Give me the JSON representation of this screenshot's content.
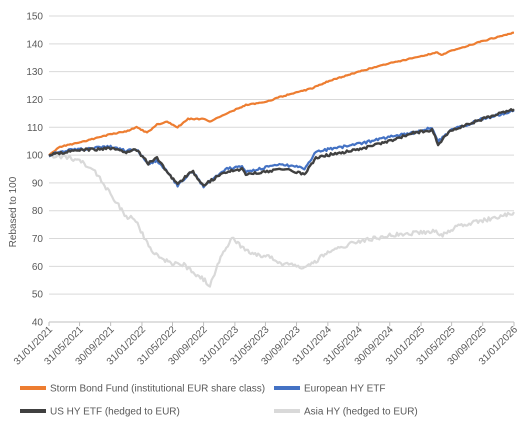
{
  "chart_data": {
    "type": "line",
    "title": "",
    "xlabel": "",
    "ylabel": "Rebased to 100",
    "ylim": [
      40,
      150
    ],
    "yticks": [
      40,
      50,
      60,
      70,
      80,
      90,
      100,
      110,
      120,
      130,
      140,
      150
    ],
    "x_range": [
      "2021-01-31",
      "2026-01-31"
    ],
    "xticks": [
      {
        "date": "2021-01-31",
        "label": "31/01/2021"
      },
      {
        "date": "2021-05-31",
        "label": "31/05/2021"
      },
      {
        "date": "2021-09-30",
        "label": "30/09/2021"
      },
      {
        "date": "2022-01-31",
        "label": "31/01/2022"
      },
      {
        "date": "2022-05-31",
        "label": "31/05/2022"
      },
      {
        "date": "2022-09-30",
        "label": "30/09/2022"
      },
      {
        "date": "2023-01-31",
        "label": "31/01/2023"
      },
      {
        "date": "2023-05-31",
        "label": "31/05/2023"
      },
      {
        "date": "2023-09-30",
        "label": "30/09/2023"
      },
      {
        "date": "2024-01-31",
        "label": "31/01/2024"
      },
      {
        "date": "2024-05-31",
        "label": "31/05/2024"
      },
      {
        "date": "2024-09-30",
        "label": "30/09/2024"
      },
      {
        "date": "2025-01-31",
        "label": "31/01/2025"
      },
      {
        "date": "2025-05-31",
        "label": "31/05/2025"
      },
      {
        "date": "2025-09-30",
        "label": "30/09/2025"
      },
      {
        "date": "2026-01-31",
        "label": "31/01/2026"
      }
    ],
    "grid": "horizontal",
    "legend_position": "bottom",
    "series": [
      {
        "name": "Storm Bond Fund (institutional EUR share class)",
        "color": "#ED7D31",
        "points": [
          [
            "2021-01-31",
            100
          ],
          [
            "2021-03-15",
            103
          ],
          [
            "2021-05-31",
            104.5
          ],
          [
            "2021-07-31",
            106
          ],
          [
            "2021-09-30",
            107.5
          ],
          [
            "2021-11-30",
            108.5
          ],
          [
            "2022-01-10",
            110
          ],
          [
            "2022-02-20",
            108
          ],
          [
            "2022-03-31",
            111
          ],
          [
            "2022-05-10",
            112
          ],
          [
            "2022-06-20",
            110
          ],
          [
            "2022-07-31",
            113
          ],
          [
            "2022-09-30",
            113
          ],
          [
            "2022-10-25",
            112
          ],
          [
            "2022-12-31",
            115
          ],
          [
            "2023-03-15",
            118
          ],
          [
            "2023-05-31",
            119
          ],
          [
            "2023-07-31",
            121
          ],
          [
            "2023-09-30",
            122.5
          ],
          [
            "2023-11-30",
            124
          ],
          [
            "2024-01-31",
            126.5
          ],
          [
            "2024-05-31",
            130
          ],
          [
            "2024-09-30",
            133
          ],
          [
            "2025-01-31",
            135.5
          ],
          [
            "2025-04-05",
            137
          ],
          [
            "2025-04-20",
            136
          ],
          [
            "2025-05-31",
            137.5
          ],
          [
            "2025-09-30",
            141
          ],
          [
            "2026-01-31",
            144
          ]
        ]
      },
      {
        "name": "European HY ETF",
        "color": "#4472C4",
        "points": [
          [
            "2021-01-31",
            100
          ],
          [
            "2021-03-31",
            101.5
          ],
          [
            "2021-05-31",
            102
          ],
          [
            "2021-07-31",
            102.5
          ],
          [
            "2021-09-30",
            103
          ],
          [
            "2021-11-30",
            101.5
          ],
          [
            "2022-01-10",
            102
          ],
          [
            "2022-02-25",
            97
          ],
          [
            "2022-03-31",
            98
          ],
          [
            "2022-04-30",
            95
          ],
          [
            "2022-06-20",
            89
          ],
          [
            "2022-07-31",
            93
          ],
          [
            "2022-08-20",
            94
          ],
          [
            "2022-09-30",
            88.5
          ],
          [
            "2022-10-31",
            91
          ],
          [
            "2022-12-31",
            95
          ],
          [
            "2023-02-28",
            96
          ],
          [
            "2023-03-15",
            94
          ],
          [
            "2023-05-31",
            95.5
          ],
          [
            "2023-07-31",
            96.5
          ],
          [
            "2023-09-30",
            96
          ],
          [
            "2023-10-31",
            95
          ],
          [
            "2023-12-15",
            101
          ],
          [
            "2024-01-31",
            102
          ],
          [
            "2024-05-31",
            104
          ],
          [
            "2024-09-30",
            106.5
          ],
          [
            "2024-12-31",
            108
          ],
          [
            "2025-03-15",
            110
          ],
          [
            "2025-04-08",
            105
          ],
          [
            "2025-05-31",
            109
          ],
          [
            "2025-09-30",
            113
          ],
          [
            "2026-01-31",
            116
          ]
        ]
      },
      {
        "name": "US HY ETF (hedged to EUR)",
        "color": "#404040",
        "points": [
          [
            "2021-01-31",
            100
          ],
          [
            "2021-03-31",
            101
          ],
          [
            "2021-05-31",
            102
          ],
          [
            "2021-07-31",
            102
          ],
          [
            "2021-09-30",
            102.5
          ],
          [
            "2021-11-30",
            101
          ],
          [
            "2022-01-10",
            102
          ],
          [
            "2022-02-25",
            97
          ],
          [
            "2022-03-31",
            99
          ],
          [
            "2022-04-30",
            95
          ],
          [
            "2022-06-20",
            89.5
          ],
          [
            "2022-07-31",
            93
          ],
          [
            "2022-08-20",
            94
          ],
          [
            "2022-09-30",
            89
          ],
          [
            "2022-10-31",
            91
          ],
          [
            "2022-12-31",
            94
          ],
          [
            "2023-02-28",
            95
          ],
          [
            "2023-03-15",
            93
          ],
          [
            "2023-05-31",
            94
          ],
          [
            "2023-07-31",
            95
          ],
          [
            "2023-09-30",
            94
          ],
          [
            "2023-10-31",
            93
          ],
          [
            "2023-12-15",
            99
          ],
          [
            "2024-01-31",
            100
          ],
          [
            "2024-05-31",
            102
          ],
          [
            "2024-09-30",
            105
          ],
          [
            "2024-12-31",
            108
          ],
          [
            "2025-03-15",
            109
          ],
          [
            "2025-04-08",
            104
          ],
          [
            "2025-05-31",
            109
          ],
          [
            "2025-09-30",
            113
          ],
          [
            "2026-01-31",
            116.5
          ]
        ]
      },
      {
        "name": "Asia HY (hedged to EUR)",
        "color": "#D9D9D9",
        "points": [
          [
            "2021-01-31",
            100
          ],
          [
            "2021-03-31",
            99.5
          ],
          [
            "2021-05-31",
            98
          ],
          [
            "2021-07-31",
            94
          ],
          [
            "2021-08-31",
            90
          ],
          [
            "2021-09-30",
            86
          ],
          [
            "2021-10-31",
            82
          ],
          [
            "2021-11-30",
            78
          ],
          [
            "2021-12-31",
            77
          ],
          [
            "2022-01-20",
            74
          ],
          [
            "2022-02-15",
            69
          ],
          [
            "2022-03-10",
            66
          ],
          [
            "2022-04-15",
            63
          ],
          [
            "2022-05-31",
            61
          ],
          [
            "2022-07-15",
            60.5
          ],
          [
            "2022-08-20",
            58
          ],
          [
            "2022-10-05",
            55
          ],
          [
            "2022-10-25",
            53
          ],
          [
            "2022-11-30",
            62
          ],
          [
            "2023-01-20",
            70
          ],
          [
            "2023-02-28",
            67
          ],
          [
            "2023-04-15",
            64
          ],
          [
            "2023-05-31",
            64
          ],
          [
            "2023-07-31",
            61
          ],
          [
            "2023-09-30",
            60
          ],
          [
            "2023-10-31",
            59
          ],
          [
            "2024-01-31",
            65
          ],
          [
            "2024-05-31",
            69
          ],
          [
            "2024-09-30",
            71
          ],
          [
            "2024-12-31",
            72
          ],
          [
            "2025-03-31",
            72.5
          ],
          [
            "2025-04-20",
            71
          ],
          [
            "2025-06-15",
            74
          ],
          [
            "2025-09-30",
            76.5
          ],
          [
            "2026-01-31",
            79.5
          ]
        ]
      }
    ]
  }
}
